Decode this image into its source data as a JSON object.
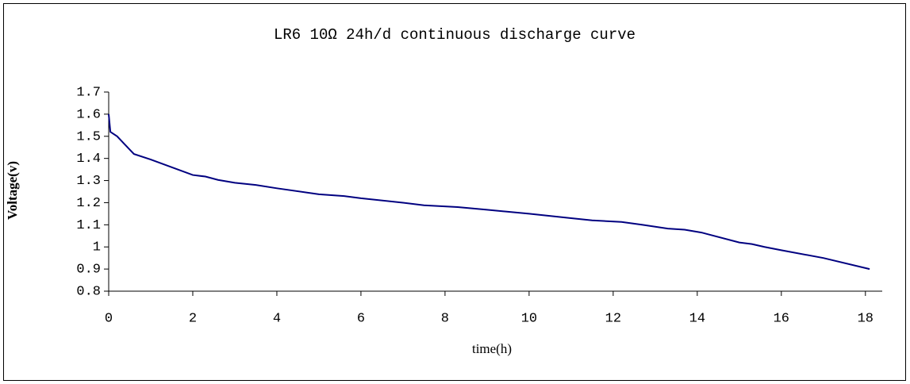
{
  "chart_data": {
    "type": "line",
    "title": "LR6 10Ω 24h/d continuous discharge curve",
    "xlabel": "time(h)",
    "ylabel": "Voltage(v)",
    "x": [
      0,
      0.04,
      0.2,
      0.35,
      0.5,
      0.6,
      1,
      1.5,
      2,
      2.3,
      2.6,
      3,
      3.5,
      4,
      5,
      5.6,
      6,
      7,
      7.5,
      8.3,
      9,
      10,
      11,
      11.5,
      12.2,
      12.7,
      13.3,
      13.7,
      14.1,
      15,
      15.3,
      15.6,
      16,
      17,
      18.1
    ],
    "series": [
      {
        "name": "Voltage",
        "color": "#000080",
        "values": [
          1.6,
          1.52,
          1.5,
          1.47,
          1.44,
          1.42,
          1.395,
          1.36,
          1.325,
          1.318,
          1.303,
          1.29,
          1.28,
          1.265,
          1.238,
          1.23,
          1.22,
          1.2,
          1.188,
          1.18,
          1.168,
          1.15,
          1.13,
          1.12,
          1.113,
          1.1,
          1.083,
          1.078,
          1.065,
          1.02,
          1.013,
          1,
          0.985,
          0.95,
          0.9
        ]
      }
    ],
    "xlim": [
      0,
      18.4
    ],
    "xticks": [
      0,
      2,
      4,
      6,
      8,
      10,
      12,
      14,
      16,
      18
    ],
    "ylim": [
      0.8,
      1.7
    ],
    "yticks": [
      0.8,
      0.9,
      1,
      1.1,
      1.2,
      1.3,
      1.4,
      1.5,
      1.6,
      1.7
    ],
    "grid": false
  }
}
